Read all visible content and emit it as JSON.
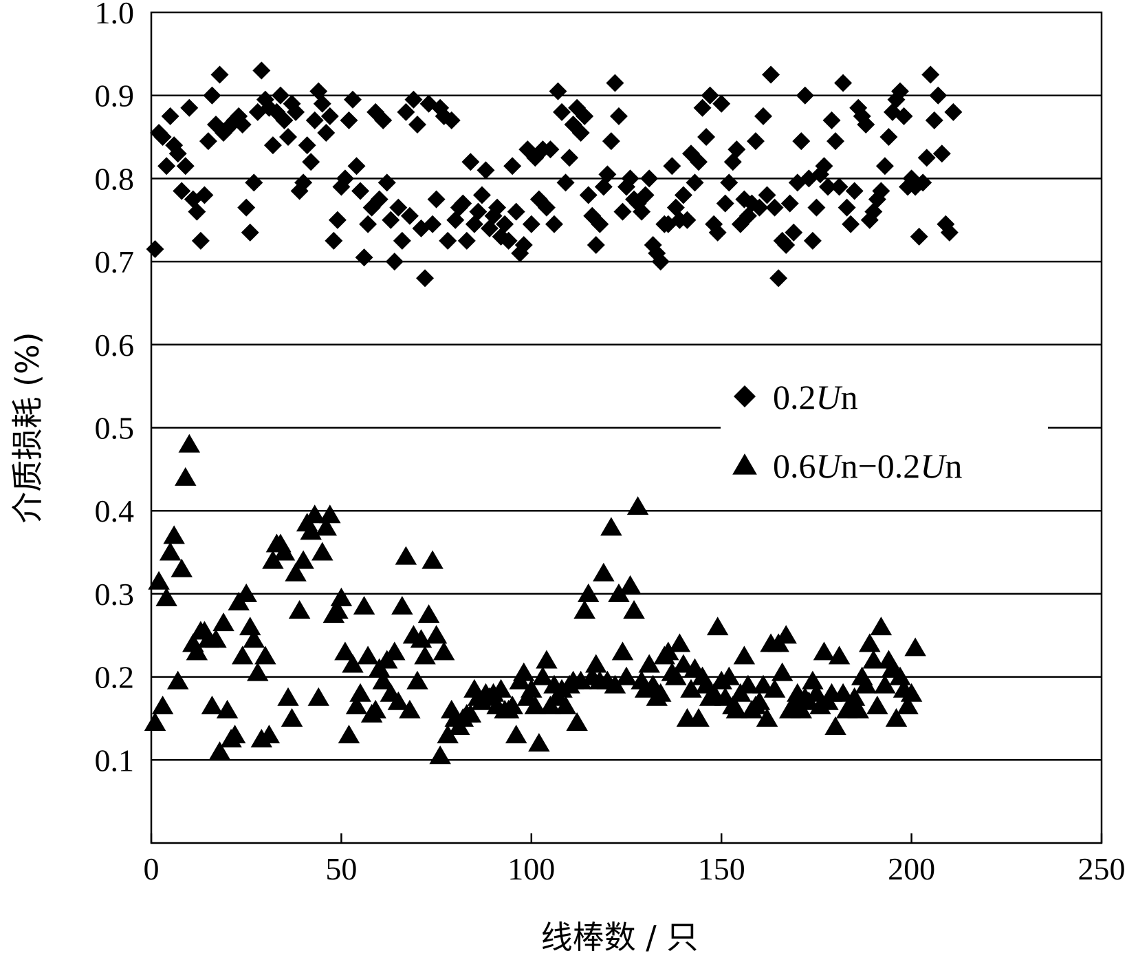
{
  "chart_data": {
    "type": "scatter",
    "title": "",
    "xlabel": "线棒数 / 只",
    "ylabel": "介质损耗 (%)",
    "xlim": [
      0,
      250
    ],
    "ylim": [
      0,
      1.0
    ],
    "x_ticks": [
      "0",
      "50",
      "100",
      "150",
      "200",
      "250"
    ],
    "y_ticks": [
      "0.1",
      "0.2",
      "0.3",
      "0.4",
      "0.5",
      "0.6",
      "0.7",
      "0.8",
      "0.9",
      "1.0"
    ],
    "grid": "horizontal",
    "legend_position": "center-right",
    "legend": [
      {
        "marker": "diamond",
        "parts": [
          {
            "t": "0.2"
          },
          {
            "t": "U",
            "i": true
          },
          {
            "t": "n"
          }
        ]
      },
      {
        "marker": "triangle",
        "parts": [
          {
            "t": "0.6"
          },
          {
            "t": "U",
            "i": true
          },
          {
            "t": "n"
          },
          {
            "t": "−0.2"
          },
          {
            "t": "U",
            "i": true
          },
          {
            "t": "n"
          }
        ]
      }
    ],
    "series": [
      {
        "marker": "diamond",
        "color": "#000000",
        "y": [
          0.715,
          0.855,
          0.85,
          0.815,
          0.875,
          0.84,
          0.83,
          0.785,
          0.815,
          0.885,
          0.775,
          0.76,
          0.725,
          0.78,
          0.845,
          0.9,
          0.865,
          0.925,
          0.855,
          0.86,
          0.865,
          0.87,
          0.875,
          0.865,
          0.765,
          0.735,
          0.795,
          0.88,
          0.93,
          0.895,
          0.885,
          0.84,
          0.88,
          0.9,
          0.87,
          0.85,
          0.89,
          0.88,
          0.785,
          0.795,
          0.84,
          0.82,
          0.87,
          0.905,
          0.89,
          0.855,
          0.875,
          0.725,
          0.75,
          0.79,
          0.8,
          0.87,
          0.895,
          0.815,
          0.785,
          0.705,
          0.745,
          0.765,
          0.88,
          0.775,
          0.87,
          0.795,
          0.75,
          0.7,
          0.765,
          0.725,
          0.88,
          0.755,
          0.895,
          0.865,
          0.74,
          0.68,
          0.89,
          0.745,
          0.775,
          0.885,
          0.875,
          0.725,
          0.87,
          0.75,
          0.765,
          0.77,
          0.725,
          0.82,
          0.745,
          0.76,
          0.78,
          0.81,
          0.74,
          0.755,
          0.765,
          0.73,
          0.745,
          0.725,
          0.815,
          0.76,
          0.71,
          0.72,
          0.835,
          0.745,
          0.825,
          0.775,
          0.835,
          0.765,
          0.835,
          0.745,
          0.905,
          0.88,
          0.795,
          0.825,
          0.865,
          0.885,
          0.855,
          0.875,
          0.78,
          0.755,
          0.72,
          0.745,
          0.79,
          0.805,
          0.845,
          0.915,
          0.875,
          0.76,
          0.79,
          0.8,
          0.775,
          0.77,
          0.76,
          0.78,
          0.8,
          0.72,
          0.71,
          0.7,
          0.745,
          0.745,
          0.815,
          0.765,
          0.75,
          0.78,
          0.75,
          0.83,
          0.795,
          0.82,
          0.885,
          0.85,
          0.9,
          0.745,
          0.735,
          0.89,
          0.77,
          0.795,
          0.82,
          0.835,
          0.745,
          0.775,
          0.755,
          0.77,
          0.845,
          0.765,
          0.875,
          0.78,
          0.925,
          0.765,
          0.68,
          0.725,
          0.72,
          0.77,
          0.735,
          0.795,
          0.845,
          0.9,
          0.8,
          0.725,
          0.765,
          0.805,
          0.815,
          0.79,
          0.87,
          0.845,
          0.79,
          0.915,
          0.765,
          0.745,
          0.785,
          0.885,
          0.875,
          0.865,
          0.75,
          0.76,
          0.775,
          0.785,
          0.815,
          0.85,
          0.88,
          0.895,
          0.905,
          0.875,
          0.79,
          0.8,
          0.79,
          0.73,
          0.795,
          0.825,
          0.925,
          0.87,
          0.9,
          0.83,
          0.745,
          0.735,
          0.88
        ]
      },
      {
        "marker": "triangle",
        "color": "#000000",
        "y": [
          0.145,
          0.315,
          0.165,
          0.295,
          0.35,
          0.37,
          0.195,
          0.33,
          0.44,
          0.48,
          0.24,
          0.23,
          0.255,
          0.255,
          0.245,
          0.165,
          0.245,
          0.11,
          0.265,
          0.16,
          0.125,
          0.13,
          0.29,
          0.225,
          0.3,
          0.26,
          0.245,
          0.205,
          0.125,
          0.225,
          0.13,
          0.34,
          0.36,
          0.36,
          0.35,
          0.175,
          0.15,
          0.325,
          0.28,
          0.34,
          0.385,
          0.375,
          0.395,
          0.175,
          0.35,
          0.38,
          0.395,
          0.275,
          0.28,
          0.295,
          0.23,
          0.13,
          0.215,
          0.165,
          0.18,
          0.285,
          0.225,
          0.155,
          0.16,
          0.21,
          0.195,
          0.22,
          0.18,
          0.23,
          0.17,
          0.285,
          0.345,
          0.16,
          0.25,
          0.195,
          0.245,
          0.225,
          0.275,
          0.34,
          0.25,
          0.105,
          0.23,
          0.13,
          0.16,
          0.15,
          0.14,
          0.15,
          0.155,
          0.155,
          0.185,
          0.175,
          0.17,
          0.18,
          0.175,
          0.18,
          0.165,
          0.185,
          0.16,
          0.16,
          0.165,
          0.13,
          0.195,
          0.205,
          0.175,
          0.185,
          0.165,
          0.12,
          0.2,
          0.22,
          0.165,
          0.19,
          0.175,
          0.185,
          0.165,
          0.19,
          0.195,
          0.145,
          0.195,
          0.28,
          0.3,
          0.2,
          0.215,
          0.195,
          0.325,
          0.195,
          0.38,
          0.19,
          0.3,
          0.23,
          0.2,
          0.31,
          0.28,
          0.405,
          0.195,
          0.185,
          0.215,
          0.19,
          0.175,
          0.18,
          0.225,
          0.23,
          0.205,
          0.2,
          0.24,
          0.215,
          0.15,
          0.185,
          0.21,
          0.15,
          0.2,
          0.19,
          0.175,
          0.18,
          0.26,
          0.195,
          0.175,
          0.2,
          0.165,
          0.16,
          0.18,
          0.225,
          0.19,
          0.16,
          0.165,
          0.17,
          0.19,
          0.15,
          0.24,
          0.185,
          0.24,
          0.205,
          0.25,
          0.16,
          0.165,
          0.18,
          0.16,
          0.175,
          0.17,
          0.195,
          0.18,
          0.165,
          0.23,
          0.17,
          0.18,
          0.14,
          0.225,
          0.18,
          0.16,
          0.165,
          0.175,
          0.16,
          0.2,
          0.19,
          0.24,
          0.22,
          0.165,
          0.26,
          0.19,
          0.22,
          0.21,
          0.15,
          0.2,
          0.185,
          0.165,
          0.18,
          0.235
        ]
      }
    ]
  }
}
